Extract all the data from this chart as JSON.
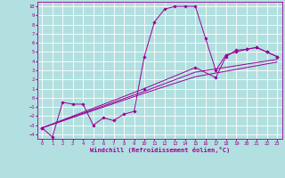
{
  "xlabel": "Windchill (Refroidissement éolien,°C)",
  "background_color": "#b2e0e0",
  "grid_color": "#ffffff",
  "line_color": "#990099",
  "xlim": [
    -0.5,
    23.5
  ],
  "ylim": [
    -4.5,
    10.5
  ],
  "xticks": [
    0,
    1,
    2,
    3,
    4,
    5,
    6,
    7,
    8,
    9,
    10,
    11,
    12,
    13,
    14,
    15,
    16,
    17,
    18,
    19,
    20,
    21,
    22,
    23
  ],
  "yticks": [
    -4,
    -3,
    -2,
    -1,
    0,
    1,
    2,
    3,
    4,
    5,
    6,
    7,
    8,
    9,
    10
  ],
  "series0": [
    [
      0,
      -3.3
    ],
    [
      1,
      -4.3
    ],
    [
      2,
      -0.5
    ],
    [
      3,
      -0.7
    ],
    [
      4,
      -0.7
    ],
    [
      5,
      -3.0
    ],
    [
      6,
      -2.2
    ],
    [
      7,
      -2.5
    ],
    [
      8,
      -1.8
    ],
    [
      9,
      -1.5
    ],
    [
      10,
      4.5
    ],
    [
      11,
      8.3
    ],
    [
      12,
      9.7
    ],
    [
      13,
      10.0
    ],
    [
      14,
      10.0
    ],
    [
      15,
      10.0
    ],
    [
      16,
      6.5
    ],
    [
      17,
      3.0
    ],
    [
      18,
      4.7
    ],
    [
      19,
      5.0
    ],
    [
      20,
      5.3
    ],
    [
      21,
      5.5
    ],
    [
      22,
      5.0
    ],
    [
      23,
      4.5
    ]
  ],
  "series1": [
    [
      0,
      -3.3
    ],
    [
      10,
      1.0
    ],
    [
      15,
      3.3
    ],
    [
      17,
      2.2
    ],
    [
      18,
      4.5
    ],
    [
      19,
      5.2
    ],
    [
      20,
      5.3
    ],
    [
      21,
      5.5
    ],
    [
      22,
      5.0
    ],
    [
      23,
      4.5
    ]
  ],
  "series2": [
    [
      0,
      -3.3
    ],
    [
      10,
      0.7
    ],
    [
      15,
      2.8
    ],
    [
      23,
      4.2
    ]
  ],
  "series3": [
    [
      0,
      -3.3
    ],
    [
      10,
      0.5
    ],
    [
      15,
      2.3
    ],
    [
      23,
      3.9
    ]
  ]
}
